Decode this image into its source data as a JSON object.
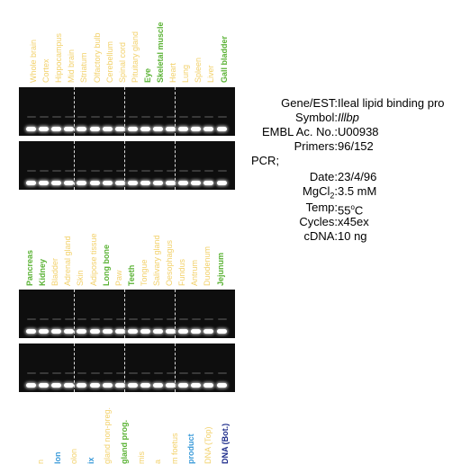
{
  "panel1": {
    "labels": [
      {
        "text": "Whole brain",
        "color": "#f2d16b",
        "bold": false
      },
      {
        "text": "Cortex",
        "color": "#f2d16b",
        "bold": false
      },
      {
        "text": "Hippocampus",
        "color": "#f2d16b",
        "bold": false
      },
      {
        "text": "Mid brain",
        "color": "#f2d16b",
        "bold": false
      },
      {
        "text": "Striatum",
        "color": "#f2d16b",
        "bold": false
      },
      {
        "text": "Olfactory bulb",
        "color": "#f2d16b",
        "bold": false
      },
      {
        "text": "Cerebellum",
        "color": "#f2d16b",
        "bold": false
      },
      {
        "text": "Spinal cord",
        "color": "#f2d16b",
        "bold": false
      },
      {
        "text": "Pituitary gland",
        "color": "#f2d16b",
        "bold": false
      },
      {
        "text": "Eye",
        "color": "#5ab234",
        "bold": true
      },
      {
        "text": "Skeletal muscle",
        "color": "#5ab234",
        "bold": true
      },
      {
        "text": "Heart",
        "color": "#f2d16b",
        "bold": false
      },
      {
        "text": "Lung",
        "color": "#f2d16b",
        "bold": false
      },
      {
        "text": "Spleen",
        "color": "#f2d16b",
        "bold": false
      },
      {
        "text": "Liver",
        "color": "#f2d16b",
        "bold": false
      },
      {
        "text": "Gall bladder",
        "color": "#5ab234",
        "bold": true
      }
    ]
  },
  "panel2": {
    "labels": [
      {
        "text": "Pancreas",
        "color": "#5ab234",
        "bold": true
      },
      {
        "text": "Kidney",
        "color": "#5ab234",
        "bold": true
      },
      {
        "text": "Bladder",
        "color": "#f2d16b",
        "bold": false
      },
      {
        "text": "Adrenal gland",
        "color": "#f2d16b",
        "bold": false
      },
      {
        "text": "Skin",
        "color": "#f2d16b",
        "bold": false
      },
      {
        "text": "Adipose tissue",
        "color": "#f2d16b",
        "bold": false
      },
      {
        "text": "Long bone",
        "color": "#5ab234",
        "bold": true
      },
      {
        "text": "Paw",
        "color": "#f2d16b",
        "bold": false
      },
      {
        "text": "Teeth",
        "color": "#5ab234",
        "bold": true
      },
      {
        "text": "Tongue",
        "color": "#f2d16b",
        "bold": false
      },
      {
        "text": "Salivary gland",
        "color": "#f2d16b",
        "bold": false
      },
      {
        "text": "Oesophagus",
        "color": "#f2d16b",
        "bold": false
      },
      {
        "text": "Fundus",
        "color": "#f2d16b",
        "bold": false
      },
      {
        "text": "Antrum",
        "color": "#f2d16b",
        "bold": false
      },
      {
        "text": "Duodenum",
        "color": "#f2d16b",
        "bold": false
      },
      {
        "text": "Jejunum",
        "color": "#5ab234",
        "bold": true
      }
    ]
  },
  "panel3": {
    "labels": [
      {
        "text": "n",
        "color": "#f2d16b",
        "bold": false
      },
      {
        "text": "lon",
        "color": "#3a9ad9",
        "bold": true
      },
      {
        "text": "olon",
        "color": "#f2d16b",
        "bold": false
      },
      {
        "text": "ix",
        "color": "#3a9ad9",
        "bold": true
      },
      {
        "text": "gland non-preg.",
        "color": "#f2d16b",
        "bold": false
      },
      {
        "text": "gland prog.",
        "color": "#5ab234",
        "bold": true
      },
      {
        "text": "mis",
        "color": "#f2d16b",
        "bold": false
      },
      {
        "text": "a",
        "color": "#f2d16b",
        "bold": false
      },
      {
        "text": "m foetus",
        "color": "#f2d16b",
        "bold": false
      },
      {
        "text": "product",
        "color": "#3a9ad9",
        "bold": true
      },
      {
        "text": "DNA (Top)",
        "color": "#f2d16b",
        "bold": false
      },
      {
        "text": "DNA (Bot.)",
        "color": "#1b2a8a",
        "bold": true
      }
    ]
  },
  "info": {
    "gene_key": "Gene/EST:",
    "gene_val": "Ileal lipid binding pro",
    "symbol_key": "Symbol:",
    "symbol_val": "Illbp",
    "embl_key": "EMBL Ac. No.:",
    "embl_val": "U00938",
    "primers_key": "Primers:",
    "primers_val": "96/152",
    "pcr_label": "PCR;",
    "date_key": "Date:",
    "date_val": "23/4/96",
    "mgcl_key": "MgCl",
    "mgcl_sub": "2",
    "mgcl_colon": ":",
    "mgcl_val": "3.5 mM",
    "temp_key": "Temp:",
    "temp_val": "55",
    "temp_sup": "o",
    "temp_unit": "C",
    "cycles_key": "Cycles:",
    "cycles_val": "x45ex",
    "cdna_key": "cDNA:",
    "cdna_val": "10 ng"
  }
}
